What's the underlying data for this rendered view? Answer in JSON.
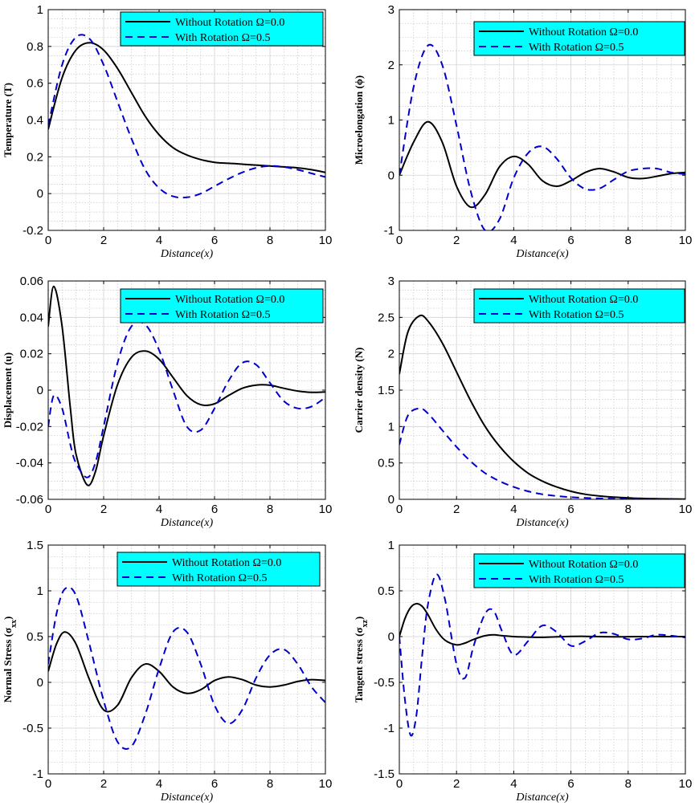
{
  "legend": {
    "series1": "Without Rotation Ω=0.0",
    "series2": "With Rotation Ω=0.5",
    "background": "#00FFFF"
  },
  "colors": {
    "series1": "#000000",
    "series2": "#0000CD",
    "grid": "#bdbdbd"
  },
  "chart_data": [
    {
      "type": "line",
      "ylabel": "Temperature (T)",
      "xlabel": "Distance(x)",
      "xlim": [
        0,
        10
      ],
      "ylim": [
        -0.2,
        1
      ],
      "xticks": [
        0,
        2,
        4,
        6,
        8,
        10
      ],
      "yticks": [
        -0.2,
        0,
        0.2,
        0.4,
        0.6,
        0.8,
        1
      ],
      "ytick_labels": [
        "-0.2",
        "0",
        "0.2",
        "0.4",
        "0.6",
        "0.8",
        "1"
      ],
      "legend_position": "top-right",
      "x": [
        0,
        0.5,
        1,
        1.5,
        2,
        2.5,
        3,
        3.5,
        4,
        4.5,
        5,
        5.5,
        6,
        6.5,
        7,
        7.5,
        8,
        8.5,
        9,
        9.5,
        10
      ],
      "series": [
        {
          "name": "Without Rotation Ω=0.0",
          "values": [
            0.35,
            0.63,
            0.78,
            0.82,
            0.78,
            0.68,
            0.55,
            0.42,
            0.32,
            0.25,
            0.21,
            0.185,
            0.17,
            0.165,
            0.16,
            0.155,
            0.15,
            0.145,
            0.14,
            0.13,
            0.115
          ]
        },
        {
          "name": "With Rotation Ω=0.5",
          "values": [
            0.37,
            0.7,
            0.85,
            0.84,
            0.7,
            0.5,
            0.3,
            0.13,
            0.03,
            -0.015,
            -0.02,
            0.0,
            0.04,
            0.08,
            0.115,
            0.14,
            0.15,
            0.145,
            0.13,
            0.11,
            0.09
          ]
        }
      ]
    },
    {
      "type": "line",
      "ylabel": "Microelongation (ϕ)",
      "xlabel": "Distance(x)",
      "xlim": [
        0,
        10
      ],
      "ylim": [
        -1,
        3
      ],
      "xticks": [
        0,
        2,
        4,
        6,
        8,
        10
      ],
      "yticks": [
        -1,
        0,
        1,
        2,
        3
      ],
      "ytick_labels": [
        "-1",
        "0",
        "1",
        "2",
        "3"
      ],
      "legend_position": "top-right",
      "x": [
        0,
        0.5,
        1,
        1.5,
        2,
        2.5,
        3,
        3.5,
        4,
        4.5,
        5,
        5.5,
        6,
        6.5,
        7,
        7.5,
        8,
        8.5,
        9,
        9.5,
        10
      ],
      "series": [
        {
          "name": "Without Rotation Ω=0.0",
          "values": [
            0.0,
            0.6,
            0.97,
            0.6,
            -0.2,
            -0.58,
            -0.35,
            0.15,
            0.34,
            0.2,
            -0.1,
            -0.2,
            -0.1,
            0.05,
            0.12,
            0.06,
            -0.04,
            -0.06,
            -0.02,
            0.03,
            0.05
          ]
        },
        {
          "name": "With Rotation Ω=0.5",
          "values": [
            0.0,
            1.6,
            2.35,
            2.0,
            0.9,
            -0.3,
            -1.0,
            -0.8,
            -0.05,
            0.4,
            0.52,
            0.3,
            -0.05,
            -0.25,
            -0.24,
            -0.08,
            0.07,
            0.12,
            0.12,
            0.05,
            0.02
          ]
        }
      ]
    },
    {
      "type": "line",
      "ylabel": "Displacement (u)",
      "xlabel": "Distance(x)",
      "xlim": [
        0,
        10
      ],
      "ylim": [
        -0.06,
        0.06
      ],
      "xticks": [
        0,
        2,
        4,
        6,
        8,
        10
      ],
      "yticks": [
        -0.06,
        -0.04,
        -0.02,
        0,
        0.02,
        0.04,
        0.06
      ],
      "ytick_labels": [
        "-0.06",
        "-0.04",
        "-0.02",
        "0",
        "0.02",
        "0.04",
        "0.06"
      ],
      "legend_position": "top-right",
      "x": [
        0,
        0.2,
        0.5,
        0.8,
        1.0,
        1.4,
        1.7,
        2.0,
        2.5,
        3.0,
        3.5,
        4.0,
        4.5,
        5.0,
        5.5,
        6.0,
        6.5,
        7.0,
        7.5,
        8.0,
        8.5,
        9.0,
        9.5,
        10
      ],
      "series": [
        {
          "name": "Without Rotation Ω=0.0",
          "values": [
            0.035,
            0.057,
            0.035,
            -0.01,
            -0.035,
            -0.052,
            -0.045,
            -0.025,
            0.003,
            0.018,
            0.0215,
            0.017,
            0.007,
            -0.003,
            -0.008,
            -0.0075,
            -0.003,
            0.001,
            0.0028,
            0.0027,
            0.001,
            -0.0005,
            -0.0012,
            -0.001
          ]
        },
        {
          "name": "With Rotation Ω=0.5",
          "values": [
            -0.02,
            -0.003,
            -0.01,
            -0.03,
            -0.04,
            -0.048,
            -0.04,
            -0.02,
            0.015,
            0.035,
            0.036,
            0.022,
            0.0,
            -0.02,
            -0.022,
            -0.01,
            0.005,
            0.015,
            0.014,
            0.004,
            -0.006,
            -0.01,
            -0.009,
            -0.004
          ]
        }
      ]
    },
    {
      "type": "line",
      "ylabel": "Carrier density (N)",
      "xlabel": "Distance(x)",
      "xlim": [
        0,
        10
      ],
      "ylim": [
        0,
        3
      ],
      "xticks": [
        0,
        2,
        4,
        6,
        8,
        10
      ],
      "yticks": [
        0,
        0.5,
        1,
        1.5,
        2,
        2.5,
        3
      ],
      "ytick_labels": [
        "0",
        "0.5",
        "1",
        "1.5",
        "2",
        "2.5",
        "3"
      ],
      "legend_position": "top-right",
      "x": [
        0,
        0.3,
        0.7,
        1,
        1.5,
        2,
        2.5,
        3,
        3.5,
        4,
        4.5,
        5,
        5.5,
        6,
        6.5,
        7,
        7.5,
        8,
        8.5,
        9,
        9.5,
        10
      ],
      "series": [
        {
          "name": "Without Rotation Ω=0.0",
          "values": [
            1.72,
            2.3,
            2.52,
            2.45,
            2.15,
            1.75,
            1.35,
            1.0,
            0.73,
            0.52,
            0.36,
            0.25,
            0.17,
            0.11,
            0.07,
            0.045,
            0.03,
            0.02,
            0.012,
            0.008,
            0.005,
            0.003
          ]
        },
        {
          "name": "With Rotation Ω=0.5",
          "values": [
            0.75,
            1.15,
            1.25,
            1.18,
            0.95,
            0.72,
            0.52,
            0.36,
            0.25,
            0.17,
            0.11,
            0.07,
            0.045,
            0.03,
            0.02,
            0.012,
            0.008,
            0.005,
            0.003,
            0.002,
            0.001,
            0.0
          ]
        }
      ]
    },
    {
      "type": "line",
      "ylabel": "Normal Stress (σxx)",
      "ylabel_main": "Normal Stress (σ",
      "ylabel_sub": "xx",
      "ylabel_close": ")",
      "xlabel": "Distance(x)",
      "xlim": [
        0,
        10
      ],
      "ylim": [
        -1,
        1.5
      ],
      "xticks": [
        0,
        2,
        4,
        6,
        8,
        10
      ],
      "yticks": [
        -1,
        -0.5,
        0,
        0.5,
        1,
        1.5
      ],
      "ytick_labels": [
        "-1",
        "-0.5",
        "0",
        "0.5",
        "1",
        "1.5"
      ],
      "legend_position": "top-right",
      "x": [
        0,
        0.3,
        0.6,
        1.0,
        1.5,
        2.0,
        2.5,
        3.0,
        3.5,
        4.0,
        4.5,
        5.0,
        5.5,
        6.0,
        6.5,
        7.0,
        7.5,
        8.0,
        8.5,
        9.0,
        9.5,
        10
      ],
      "series": [
        {
          "name": "Without Rotation Ω=0.0",
          "values": [
            0.12,
            0.42,
            0.55,
            0.42,
            0.02,
            -0.3,
            -0.25,
            0.05,
            0.2,
            0.12,
            -0.05,
            -0.12,
            -0.08,
            0.02,
            0.06,
            0.03,
            -0.03,
            -0.05,
            -0.03,
            0.01,
            0.03,
            0.02
          ]
        },
        {
          "name": "With Rotation Ω=0.5",
          "values": [
            0.2,
            0.75,
            1.02,
            0.95,
            0.4,
            -0.2,
            -0.65,
            -0.7,
            -0.35,
            0.15,
            0.55,
            0.55,
            0.2,
            -0.25,
            -0.45,
            -0.3,
            0.05,
            0.3,
            0.36,
            0.2,
            -0.05,
            -0.22
          ]
        }
      ]
    },
    {
      "type": "line",
      "ylabel": "Tangent stress (σxz)",
      "ylabel_main": "Tangent stress (σ",
      "ylabel_sub": "xz",
      "ylabel_close": ")",
      "xlabel": "Distance(x)",
      "xlim": [
        0,
        10
      ],
      "ylim": [
        -1.5,
        1
      ],
      "xticks": [
        0,
        2,
        4,
        6,
        8,
        10
      ],
      "yticks": [
        -1.5,
        -1,
        -0.5,
        0,
        0.5,
        1
      ],
      "ytick_labels": [
        "-1.5",
        "-1",
        "-0.5",
        "0",
        "0.5",
        "1"
      ],
      "legend_position": "top-right",
      "x": [
        0,
        0.2,
        0.4,
        0.6,
        0.8,
        1.0,
        1.3,
        1.6,
        2.0,
        2.3,
        2.6,
        3.0,
        3.3,
        3.6,
        4.0,
        4.5,
        5.0,
        5.5,
        6.0,
        6.5,
        7.0,
        7.5,
        8.0,
        8.5,
        9.0,
        9.5,
        10
      ],
      "series": [
        {
          "name": "Without Rotation Ω=0.0",
          "values": [
            0.0,
            0.2,
            0.32,
            0.36,
            0.33,
            0.24,
            0.07,
            -0.04,
            -0.09,
            -0.07,
            -0.03,
            0.01,
            0.02,
            0.01,
            0.0,
            -0.005,
            -0.008,
            -0.003,
            0.002,
            0.003,
            0.0,
            -0.002,
            -0.001,
            0.0,
            0.001,
            0.0,
            0.0
          ]
        },
        {
          "name": "With Rotation Ω=0.5",
          "values": [
            0.0,
            -0.7,
            -1.08,
            -0.85,
            -0.2,
            0.35,
            0.68,
            0.4,
            -0.3,
            -0.45,
            -0.1,
            0.25,
            0.28,
            0.05,
            -0.2,
            -0.05,
            0.12,
            0.05,
            -0.1,
            -0.05,
            0.04,
            0.03,
            -0.03,
            -0.02,
            0.02,
            0.01,
            -0.01
          ]
        }
      ]
    }
  ]
}
